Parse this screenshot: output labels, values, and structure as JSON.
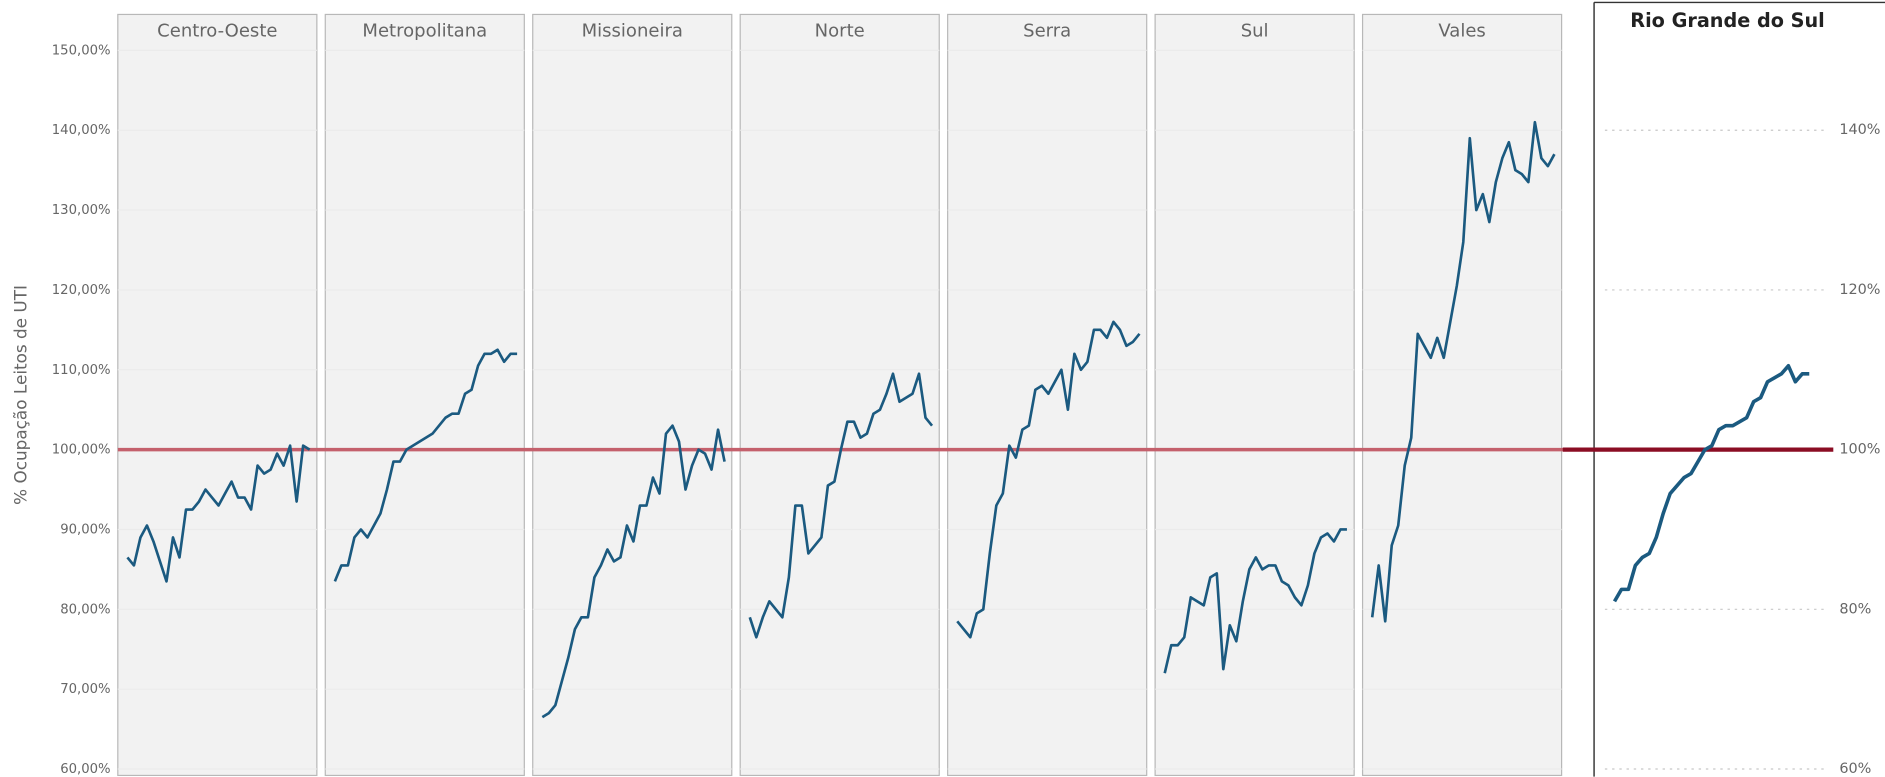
{
  "chart_data": [
    {
      "type": "line",
      "ylabel": "% Ocupação Leitos de UTI",
      "ylim": [
        59.2,
        154.5
      ],
      "yticks": [
        {
          "value": 60,
          "label": "60,00%"
        },
        {
          "value": 70,
          "label": "70,00%"
        },
        {
          "value": 80,
          "label": "80,00%"
        },
        {
          "value": 90,
          "label": "90,00%"
        },
        {
          "value": 100,
          "label": "100,00%"
        },
        {
          "value": 110,
          "label": "110,00%"
        },
        {
          "value": 120,
          "label": "120,00%"
        },
        {
          "value": 130,
          "label": "130,00%"
        },
        {
          "value": 140,
          "label": "140,00%"
        },
        {
          "value": 150,
          "label": "150,00%"
        }
      ],
      "grid": true,
      "reference_line": 100,
      "reference_color": "#c4606c",
      "series": [
        {
          "name": "Centro-Oeste",
          "color": "#1b5a80",
          "values": [
            86.5,
            85.5,
            89,
            90.5,
            88.5,
            86,
            83.5,
            89,
            86.5,
            92.5,
            92.5,
            93.5,
            95,
            94,
            93,
            94.5,
            96,
            94,
            94,
            92.5,
            98,
            97,
            97.5,
            99.5,
            98,
            100.5,
            93.5,
            100.5,
            100
          ]
        },
        {
          "name": "Metropolitana",
          "color": "#1b5a80",
          "values": [
            83.5,
            85.5,
            85.5,
            89,
            90,
            89,
            90.5,
            92,
            95,
            98.5,
            98.5,
            100,
            100.5,
            101,
            101.5,
            102,
            103,
            104,
            104.5,
            104.5,
            107,
            107.5,
            110.5,
            112,
            112,
            112.5,
            111,
            112,
            112
          ]
        },
        {
          "name": "Missioneira",
          "color": "#1b5a80",
          "values": [
            66.5,
            67,
            68,
            71,
            74,
            77.5,
            79,
            79,
            84,
            85.5,
            87.5,
            86,
            86.5,
            90.5,
            88.5,
            93,
            93,
            96.5,
            94.5,
            102,
            103,
            101,
            95,
            98,
            100,
            99.5,
            97.5,
            102.5,
            98.5
          ]
        },
        {
          "name": "Norte",
          "color": "#1b5a80",
          "values": [
            79,
            76.5,
            79,
            81,
            80,
            79,
            84,
            93,
            93,
            87,
            88,
            89,
            95.5,
            96,
            100,
            103.5,
            103.5,
            101.5,
            102,
            104.5,
            105,
            107,
            109.5,
            106,
            106.5,
            107,
            109.5,
            104,
            103
          ]
        },
        {
          "name": "Serra",
          "color": "#1b5a80",
          "values": [
            78.5,
            77.5,
            76.5,
            79.5,
            80,
            87,
            93,
            94.5,
            100.5,
            99,
            102.5,
            103,
            107.5,
            108,
            107,
            108.5,
            110,
            105,
            112,
            110,
            111,
            115,
            115,
            114,
            116,
            115,
            113,
            113.5,
            114.5
          ]
        },
        {
          "name": "Sul",
          "color": "#1b5a80",
          "values": [
            72,
            75.5,
            75.5,
            76.5,
            81.5,
            81,
            80.5,
            84,
            84.5,
            72.5,
            78,
            76,
            81,
            85,
            86.5,
            85,
            85.5,
            85.5,
            83.5,
            83,
            81.5,
            80.5,
            83,
            87,
            89,
            89.5,
            88.5,
            90,
            90
          ]
        },
        {
          "name": "Vales",
          "color": "#1b5a80",
          "values": [
            79,
            85.5,
            78.5,
            88,
            90.5,
            98,
            101.5,
            114.5,
            113,
            111.5,
            114,
            111.5,
            116,
            120.5,
            126,
            139,
            130,
            132,
            128.5,
            133.5,
            136.5,
            138.5,
            135,
            134.5,
            133.5,
            141,
            136.5,
            135.5,
            137
          ]
        }
      ]
    },
    {
      "type": "line",
      "title": "Rio Grande do Sul",
      "ylim": [
        59.2,
        154.5
      ],
      "yticks": [
        {
          "value": 60,
          "label": "60%"
        },
        {
          "value": 80,
          "label": "80%"
        },
        {
          "value": 100,
          "label": "100%"
        },
        {
          "value": 120,
          "label": "120%"
        },
        {
          "value": 140,
          "label": "140%"
        }
      ],
      "grid": true,
      "reference_line": 100,
      "reference_color": "#8b0d24",
      "color": "#1b5a80",
      "values": [
        81,
        82.5,
        82.5,
        85.5,
        86.5,
        87,
        89,
        92,
        94.5,
        95.5,
        96.5,
        97,
        98.5,
        100,
        100.5,
        102.5,
        103,
        103,
        103.5,
        104,
        106,
        106.5,
        108.5,
        109,
        109.5,
        110.5,
        108.5,
        109.5,
        109.5
      ]
    }
  ]
}
